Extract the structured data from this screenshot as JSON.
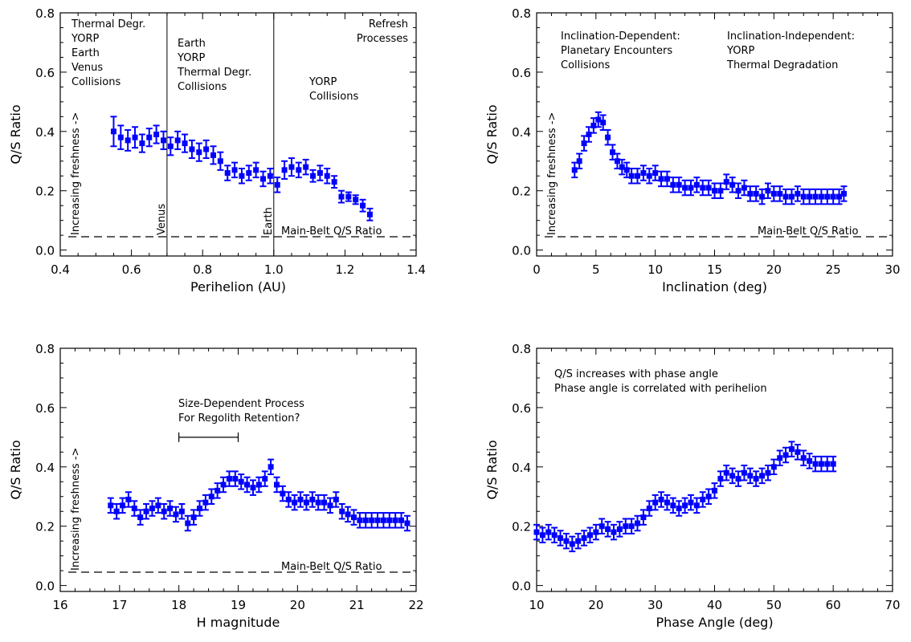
{
  "chart_data": [
    {
      "type": "scatter",
      "xlabel": "Perihelion (AU)",
      "ylabel": "Q/S Ratio",
      "xlim": [
        0.4,
        1.4
      ],
      "ylim": [
        -0.02,
        0.8
      ],
      "xticks": [
        0.4,
        0.6,
        0.8,
        1.0,
        1.2,
        1.4
      ],
      "xtick_labels": [
        "0.4",
        "0.6",
        "0.8",
        "1.0",
        "1.2",
        "1.4"
      ],
      "yticks": [
        0.0,
        0.2,
        0.4,
        0.6,
        0.8
      ],
      "ytick_labels": [
        "0.0",
        "0.2",
        "0.4",
        "0.6",
        "0.8"
      ],
      "error_bar_color": "#0000ff",
      "mainbelt_ratio": 0.045,
      "mainbelt_label": "Main-Belt Q/S Ratio",
      "vertical_lines": [
        {
          "x": 0.7,
          "label": "Venus"
        },
        {
          "x": 1.0,
          "label": "Earth"
        }
      ],
      "freshness_label": "Increasing freshness ->",
      "annotations": [
        {
          "lines": [
            "Thermal Degr.",
            "YORP",
            "Earth",
            "Venus",
            "Collisions"
          ],
          "align": "left"
        },
        {
          "lines": [
            "Earth",
            "YORP",
            "Thermal Degr.",
            "Collisions"
          ],
          "align": "left"
        },
        {
          "lines": [
            "Refresh",
            "Processes"
          ],
          "align": "right"
        },
        {
          "lines": [
            "YORP",
            "Collisions"
          ],
          "align": "left"
        }
      ],
      "series": [
        {
          "x": [
            0.55,
            0.57,
            0.59,
            0.61,
            0.63,
            0.65,
            0.67,
            0.69,
            0.71,
            0.73,
            0.75,
            0.77,
            0.79,
            0.81,
            0.83,
            0.85,
            0.87,
            0.89,
            0.91,
            0.93,
            0.95,
            0.97,
            0.99,
            1.01,
            1.03,
            1.05,
            1.07,
            1.09,
            1.11,
            1.13,
            1.15,
            1.17,
            1.19,
            1.21,
            1.23,
            1.25,
            1.27
          ],
          "y": [
            0.4,
            0.38,
            0.37,
            0.38,
            0.36,
            0.38,
            0.39,
            0.37,
            0.35,
            0.37,
            0.36,
            0.34,
            0.33,
            0.34,
            0.32,
            0.3,
            0.26,
            0.27,
            0.25,
            0.26,
            0.27,
            0.24,
            0.25,
            0.22,
            0.27,
            0.28,
            0.27,
            0.28,
            0.25,
            0.26,
            0.25,
            0.23,
            0.18,
            0.18,
            0.17,
            0.15,
            0.12
          ],
          "err": [
            0.05,
            0.04,
            0.035,
            0.035,
            0.03,
            0.03,
            0.03,
            0.03,
            0.03,
            0.03,
            0.03,
            0.03,
            0.03,
            0.03,
            0.03,
            0.03,
            0.025,
            0.025,
            0.025,
            0.025,
            0.025,
            0.025,
            0.025,
            0.025,
            0.03,
            0.03,
            0.025,
            0.025,
            0.02,
            0.025,
            0.025,
            0.02,
            0.02,
            0.015,
            0.015,
            0.02,
            0.02
          ]
        }
      ]
    },
    {
      "type": "scatter",
      "xlabel": "Inclination (deg)",
      "ylabel": "Q/S Ratio",
      "xlim": [
        0,
        30
      ],
      "ylim": [
        -0.02,
        0.8
      ],
      "xticks": [
        0,
        5,
        10,
        15,
        20,
        25,
        30
      ],
      "xtick_labels": [
        "0",
        "5",
        "10",
        "15",
        "20",
        "25",
        "30"
      ],
      "yticks": [
        0.0,
        0.2,
        0.4,
        0.6,
        0.8
      ],
      "ytick_labels": [
        "0.0",
        "0.2",
        "0.4",
        "0.6",
        "0.8"
      ],
      "error_bar_color": "#0000ff",
      "mainbelt_ratio": 0.045,
      "mainbelt_label": "Main-Belt Q/S Ratio",
      "vertical_lines": [],
      "freshness_label": "Increasing freshness ->",
      "annotations": [
        {
          "lines": [
            "Inclination-Dependent:",
            "Planetary Encounters",
            "Collisions"
          ],
          "align": "left"
        },
        {
          "lines": [
            "Inclination-Independent:",
            "YORP",
            "Thermal Degradation"
          ],
          "align": "left"
        }
      ],
      "series": [
        {
          "x": [
            3.2,
            3.6,
            4.0,
            4.4,
            4.8,
            5.2,
            5.6,
            6.0,
            6.4,
            6.8,
            7.2,
            7.6,
            8.0,
            8.5,
            9.0,
            9.5,
            10.0,
            10.5,
            11.0,
            11.5,
            12.0,
            12.5,
            13.0,
            13.5,
            14.0,
            14.5,
            15.0,
            15.5,
            16.0,
            16.5,
            17.0,
            17.5,
            18.0,
            18.5,
            19.0,
            19.5,
            20.0,
            20.5,
            21.0,
            21.5,
            22.0,
            22.5,
            23.0,
            23.5,
            24.0,
            24.5,
            25.0,
            25.5,
            25.9
          ],
          "y": [
            0.27,
            0.3,
            0.36,
            0.39,
            0.42,
            0.44,
            0.43,
            0.38,
            0.33,
            0.3,
            0.28,
            0.27,
            0.25,
            0.25,
            0.26,
            0.25,
            0.26,
            0.24,
            0.24,
            0.22,
            0.22,
            0.21,
            0.21,
            0.22,
            0.21,
            0.21,
            0.2,
            0.2,
            0.23,
            0.22,
            0.2,
            0.21,
            0.19,
            0.19,
            0.18,
            0.2,
            0.19,
            0.19,
            0.18,
            0.18,
            0.19,
            0.18,
            0.18,
            0.18,
            0.18,
            0.18,
            0.18,
            0.18,
            0.19
          ]
        }
      ]
    },
    {
      "type": "scatter",
      "xlabel": "H magnitude",
      "ylabel": "Q/S Ratio",
      "xlim": [
        16,
        22
      ],
      "ylim": [
        -0.02,
        0.8
      ],
      "xticks": [
        16,
        17,
        18,
        19,
        20,
        21,
        22
      ],
      "xtick_labels": [
        "16",
        "17",
        "18",
        "19",
        "20",
        "21",
        "22"
      ],
      "yticks": [
        0.0,
        0.2,
        0.4,
        0.6,
        0.8
      ],
      "ytick_labels": [
        "0.0",
        "0.2",
        "0.4",
        "0.6",
        "0.8"
      ],
      "error_bar_color": "#0000ff",
      "mainbelt_ratio": 0.045,
      "mainbelt_label": "Main-Belt Q/S Ratio",
      "vertical_lines": [],
      "freshness_label": "Increasing freshness ->",
      "annotations": [
        {
          "lines": [
            "Size-Dependent Process",
            "For Regolith Retention?"
          ],
          "align": "left"
        }
      ],
      "bracket": {
        "x0": 18.0,
        "x1": 19.0,
        "y": 0.5
      },
      "series": [
        {
          "x": [
            16.85,
            16.95,
            17.05,
            17.15,
            17.25,
            17.35,
            17.45,
            17.55,
            17.65,
            17.75,
            17.85,
            17.95,
            18.05,
            18.15,
            18.25,
            18.35,
            18.45,
            18.55,
            18.65,
            18.75,
            18.85,
            18.95,
            19.05,
            19.15,
            19.25,
            19.35,
            19.45,
            19.55,
            19.65,
            19.75,
            19.85,
            19.95,
            20.05,
            20.15,
            20.25,
            20.35,
            20.45,
            20.55,
            20.65,
            20.75,
            20.85,
            20.95,
            21.05,
            21.15,
            21.25,
            21.35,
            21.45,
            21.55,
            21.65,
            21.75,
            21.85
          ],
          "y": [
            0.27,
            0.25,
            0.27,
            0.29,
            0.26,
            0.23,
            0.25,
            0.26,
            0.27,
            0.25,
            0.26,
            0.24,
            0.25,
            0.21,
            0.23,
            0.26,
            0.28,
            0.3,
            0.32,
            0.34,
            0.36,
            0.36,
            0.35,
            0.34,
            0.33,
            0.34,
            0.36,
            0.4,
            0.34,
            0.31,
            0.29,
            0.28,
            0.29,
            0.28,
            0.29,
            0.28,
            0.28,
            0.27,
            0.29,
            0.25,
            0.24,
            0.23,
            0.22,
            0.22,
            0.22,
            0.22,
            0.22,
            0.22,
            0.22,
            0.22,
            0.21
          ]
        }
      ]
    },
    {
      "type": "scatter",
      "xlabel": "Phase Angle (deg)",
      "ylabel": "Q/S Ratio",
      "xlim": [
        10,
        70
      ],
      "ylim": [
        -0.02,
        0.8
      ],
      "xticks": [
        10,
        20,
        30,
        40,
        50,
        60,
        70
      ],
      "xtick_labels": [
        "10",
        "20",
        "30",
        "40",
        "50",
        "60",
        "70"
      ],
      "yticks": [
        0.0,
        0.2,
        0.4,
        0.6,
        0.8
      ],
      "ytick_labels": [
        "0.0",
        "0.2",
        "0.4",
        "0.6",
        "0.8"
      ],
      "error_bar_color": "#0000ff",
      "vertical_lines": [],
      "annotations": [
        {
          "lines": [
            "Q/S increases with phase angle",
            "Phase angle is correlated with perihelion"
          ],
          "align": "left"
        }
      ],
      "series": [
        {
          "x": [
            10.0,
            11.0,
            12.0,
            13.0,
            14.0,
            15.0,
            16.0,
            17.0,
            18.0,
            19.0,
            20.0,
            21.0,
            22.0,
            23.0,
            24.0,
            25.0,
            26.0,
            27.0,
            28.0,
            29.0,
            30.0,
            31.0,
            32.0,
            33.0,
            34.0,
            35.0,
            36.0,
            37.0,
            38.0,
            39.0,
            40.0,
            41.0,
            42.0,
            43.0,
            44.0,
            45.0,
            46.0,
            47.0,
            48.0,
            49.0,
            50.0,
            51.0,
            52.0,
            53.0,
            54.0,
            55.0,
            56.0,
            57.0,
            58.0,
            59.0,
            60.0
          ],
          "y": [
            0.18,
            0.17,
            0.18,
            0.17,
            0.16,
            0.15,
            0.14,
            0.15,
            0.16,
            0.17,
            0.18,
            0.2,
            0.19,
            0.18,
            0.19,
            0.2,
            0.2,
            0.21,
            0.23,
            0.26,
            0.28,
            0.29,
            0.28,
            0.27,
            0.26,
            0.27,
            0.28,
            0.27,
            0.29,
            0.3,
            0.32,
            0.36,
            0.38,
            0.37,
            0.36,
            0.38,
            0.37,
            0.36,
            0.37,
            0.38,
            0.4,
            0.43,
            0.44,
            0.46,
            0.45,
            0.43,
            0.42,
            0.41,
            0.41,
            0.41,
            0.41
          ]
        }
      ]
    }
  ]
}
